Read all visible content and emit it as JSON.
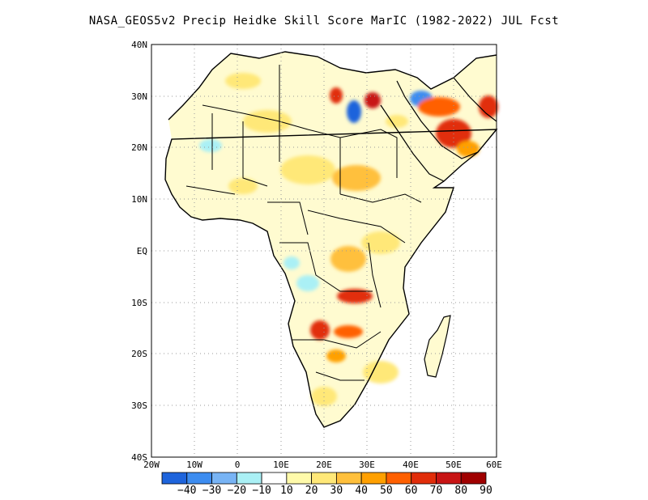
{
  "title": "NASA_GEOS5v2 Precip Heidke Skill Score MarIC (1982-2022) JUL Fcst",
  "map": {
    "lon_range": [
      -20,
      60
    ],
    "lat_range": [
      -40,
      40
    ],
    "lon_ticks": [
      "20W",
      "10W",
      "0",
      "10E",
      "20E",
      "30E",
      "40E",
      "50E",
      "60E"
    ],
    "lat_ticks": [
      "40N",
      "30N",
      "20N",
      "10N",
      "EQ",
      "10S",
      "20S",
      "30S",
      "40S"
    ],
    "grid": "dotted",
    "ocean_color": "#ffffff",
    "coast_color": "#000000"
  },
  "colorbar": {
    "labels": [
      "-40",
      "-30",
      "-20",
      "-10",
      "10",
      "20",
      "30",
      "40",
      "50",
      "60",
      "70",
      "80",
      "90"
    ],
    "colors": [
      "#1e64dc",
      "#3c8cf0",
      "#78b4f5",
      "#aaf0f5",
      "#ffffff",
      "#fffaaa",
      "#ffe878",
      "#ffc03c",
      "#ffa000",
      "#ff6000",
      "#e12d0a",
      "#c81414",
      "#a00000"
    ]
  }
}
